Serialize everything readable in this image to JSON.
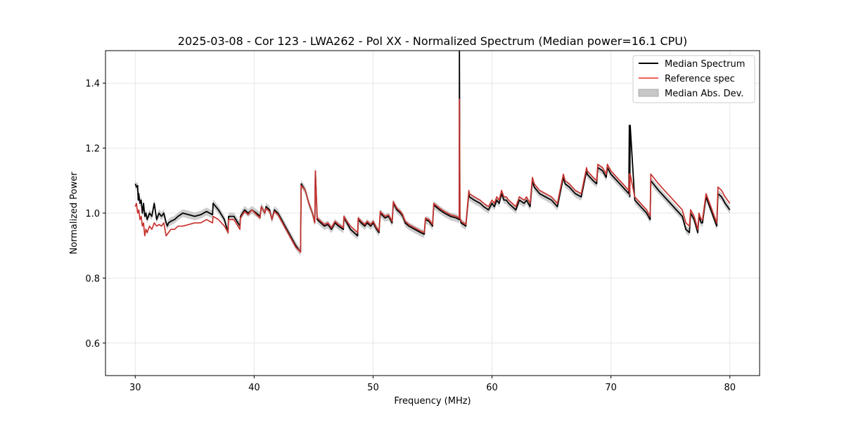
{
  "chart_data": {
    "type": "line",
    "title": "2025-03-08 - Cor 123 - LWA262 - Pol XX - Normalized Spectrum (Median power=16.1 CPU)",
    "xlabel": "Frequency (MHz)",
    "ylabel": "Normalized Power",
    "xlim": [
      27.5,
      82.5
    ],
    "ylim": [
      0.5,
      1.5
    ],
    "xticks": [
      30,
      40,
      50,
      60,
      70,
      80
    ],
    "yticks": [
      0.6,
      0.8,
      1.0,
      1.2,
      1.4
    ],
    "xtick_labels": [
      "30",
      "40",
      "50",
      "60",
      "70",
      "80"
    ],
    "ytick_labels": [
      "0.6",
      "0.8",
      "1.0",
      "1.2",
      "1.4"
    ],
    "grid": true,
    "legend_position": "upper right",
    "legend": [
      {
        "name": "Median Spectrum",
        "kind": "line",
        "color": "#000000"
      },
      {
        "name": "Reference spec",
        "kind": "line",
        "color": "#f0605a"
      },
      {
        "name": "Median Abs. Dev.",
        "kind": "band",
        "color": "#c8c8c8"
      }
    ],
    "mad_halfwidth": 0.012,
    "series": [
      {
        "name": "Median Spectrum",
        "color": "#000000",
        "x": [
          30.0,
          30.1,
          30.2,
          30.25,
          30.3,
          30.4,
          30.5,
          30.6,
          30.7,
          30.8,
          30.9,
          31.0,
          31.2,
          31.4,
          31.6,
          31.8,
          32.0,
          32.2,
          32.4,
          32.6,
          32.7,
          32.8,
          33.0,
          33.3,
          33.6,
          34.0,
          34.5,
          35.0,
          35.5,
          36.0,
          36.5,
          36.55,
          37.0,
          37.5,
          37.8,
          37.85,
          38.3,
          38.8,
          38.85,
          39.2,
          39.5,
          39.8,
          40.2,
          40.5,
          40.6,
          40.9,
          41.0,
          41.3,
          41.5,
          41.7,
          42.0,
          42.3,
          42.6,
          42.9,
          43.2,
          43.5,
          43.9,
          43.95,
          44.3,
          44.6,
          44.9,
          45.1,
          45.15,
          45.3,
          45.6,
          45.9,
          46.2,
          46.5,
          46.8,
          47.1,
          47.5,
          47.55,
          47.8,
          48.1,
          48.4,
          48.7,
          48.75,
          49.0,
          49.3,
          49.5,
          49.8,
          50.0,
          50.3,
          50.5,
          50.6,
          51.0,
          51.3,
          51.6,
          51.7,
          52.0,
          52.3,
          52.5,
          52.7,
          53.0,
          53.5,
          54.0,
          54.3,
          54.4,
          54.7,
          55.0,
          55.1,
          55.6,
          56.0,
          56.5,
          57.0,
          57.25,
          57.26,
          57.3,
          57.32,
          57.4,
          57.8,
          58.05,
          58.1,
          58.5,
          59.0,
          59.3,
          59.7,
          60.0,
          60.2,
          60.4,
          60.6,
          60.8,
          61.0,
          61.2,
          61.4,
          61.7,
          62.0,
          62.3,
          62.7,
          62.9,
          63.2,
          63.4,
          63.55,
          64.0,
          64.5,
          65.0,
          65.5,
          66.0,
          66.15,
          66.5,
          67.0,
          67.5,
          67.95,
          68.0,
          68.5,
          68.8,
          68.9,
          69.3,
          69.6,
          69.7,
          70.0,
          70.5,
          71.0,
          71.5,
          71.55,
          71.58,
          71.62,
          72.0,
          72.5,
          73.0,
          73.3,
          73.35,
          74.0,
          74.5,
          75.0,
          75.5,
          76.0,
          76.3,
          76.6,
          76.7,
          77.0,
          77.3,
          77.4,
          77.6,
          77.7,
          78.0,
          78.3,
          78.5,
          78.9,
          79.0,
          79.3,
          79.6,
          80.0
        ],
        "y": [
          1.09,
          1.08,
          1.085,
          1.04,
          1.06,
          1.03,
          1.04,
          1.0,
          1.03,
          0.99,
          1.0,
          0.98,
          1.0,
          0.99,
          1.03,
          0.98,
          1.0,
          0.99,
          1.0,
          0.97,
          0.96,
          0.97,
          0.975,
          0.98,
          0.99,
          1.0,
          0.995,
          0.99,
          0.995,
          1.005,
          0.995,
          1.03,
          1.01,
          0.98,
          0.94,
          0.99,
          0.99,
          0.96,
          0.99,
          1.01,
          1.0,
          1.01,
          1.0,
          0.99,
          1.02,
          1.0,
          1.02,
          1.01,
          0.98,
          1.01,
          1.0,
          0.98,
          0.96,
          0.94,
          0.92,
          0.9,
          0.88,
          1.09,
          1.07,
          1.03,
          1.0,
          0.97,
          1.13,
          0.98,
          0.97,
          0.96,
          0.965,
          0.95,
          0.97,
          0.96,
          0.95,
          0.985,
          0.97,
          0.95,
          0.94,
          0.93,
          0.98,
          0.97,
          0.96,
          0.97,
          0.96,
          0.97,
          0.95,
          0.94,
          1.0,
          0.985,
          0.99,
          0.97,
          1.03,
          1.01,
          1.0,
          0.99,
          0.97,
          0.96,
          0.95,
          0.94,
          0.935,
          0.98,
          0.975,
          0.96,
          1.025,
          1.01,
          1.0,
          0.99,
          0.985,
          0.98,
          1.5,
          0.995,
          0.98,
          0.97,
          0.96,
          1.06,
          1.05,
          1.04,
          1.03,
          1.02,
          1.01,
          1.03,
          1.02,
          1.04,
          1.03,
          1.06,
          1.04,
          1.04,
          1.03,
          1.02,
          1.01,
          1.04,
          1.03,
          1.04,
          1.02,
          1.1,
          1.08,
          1.06,
          1.05,
          1.04,
          1.02,
          1.11,
          1.09,
          1.08,
          1.06,
          1.05,
          1.13,
          1.12,
          1.1,
          1.09,
          1.14,
          1.13,
          1.11,
          1.14,
          1.12,
          1.1,
          1.08,
          1.06,
          1.27,
          1.05,
          1.27,
          1.04,
          1.02,
          1.0,
          0.98,
          1.1,
          1.07,
          1.05,
          1.03,
          1.01,
          0.99,
          0.95,
          0.94,
          1.0,
          0.98,
          0.94,
          0.99,
          0.97,
          0.97,
          1.05,
          1.02,
          1.0,
          0.96,
          1.06,
          1.05,
          1.03,
          1.01
        ]
      },
      {
        "name": "Reference spec",
        "color": "#f0605a",
        "x": [
          30.0,
          30.1,
          30.2,
          30.3,
          30.4,
          30.5,
          30.6,
          30.7,
          30.8,
          30.9,
          31.0,
          31.2,
          31.4,
          31.6,
          31.8,
          32.0,
          32.2,
          32.4,
          32.6,
          32.7,
          32.8,
          33.0,
          33.3,
          33.6,
          34.0,
          34.5,
          35.0,
          35.5,
          36.0,
          36.5,
          36.55,
          37.0,
          37.5,
          37.8,
          37.85,
          38.3,
          38.8,
          38.85,
          39.2,
          39.5,
          39.8,
          40.2,
          40.5,
          40.6,
          40.9,
          41.0,
          41.3,
          41.5,
          41.7,
          42.0,
          42.3,
          42.6,
          42.9,
          43.2,
          43.5,
          43.9,
          43.95,
          44.3,
          44.6,
          44.9,
          45.1,
          45.15,
          45.3,
          45.6,
          45.9,
          46.2,
          46.5,
          46.8,
          47.1,
          47.5,
          47.55,
          47.8,
          48.1,
          48.4,
          48.7,
          48.75,
          49.0,
          49.3,
          49.5,
          49.8,
          50.0,
          50.3,
          50.5,
          50.6,
          51.0,
          51.3,
          51.6,
          51.7,
          52.0,
          52.3,
          52.5,
          52.7,
          53.0,
          53.5,
          54.0,
          54.3,
          54.4,
          54.7,
          55.0,
          55.1,
          55.6,
          56.0,
          56.5,
          57.0,
          57.25,
          57.26,
          57.3,
          57.32,
          57.4,
          57.8,
          58.05,
          58.1,
          58.5,
          59.0,
          59.3,
          59.7,
          60.0,
          60.2,
          60.4,
          60.6,
          60.8,
          61.0,
          61.2,
          61.4,
          61.7,
          62.0,
          62.3,
          62.7,
          62.9,
          63.2,
          63.4,
          63.55,
          64.0,
          64.5,
          65.0,
          65.5,
          66.0,
          66.15,
          66.5,
          67.0,
          67.5,
          67.95,
          68.0,
          68.5,
          68.8,
          68.9,
          69.3,
          69.6,
          69.7,
          70.0,
          70.5,
          71.0,
          71.5,
          71.55,
          71.58,
          71.62,
          72.0,
          72.5,
          73.0,
          73.3,
          73.35,
          74.0,
          74.5,
          75.0,
          75.5,
          76.0,
          76.3,
          76.6,
          76.7,
          77.0,
          77.3,
          77.4,
          77.6,
          77.7,
          78.0,
          78.3,
          78.5,
          78.9,
          79.0,
          79.3,
          79.6,
          80.0
        ],
        "y": [
          1.02,
          1.03,
          1.0,
          1.01,
          0.98,
          0.99,
          0.96,
          0.97,
          0.93,
          0.95,
          0.94,
          0.96,
          0.95,
          0.97,
          0.96,
          0.965,
          0.96,
          0.97,
          0.93,
          0.935,
          0.94,
          0.95,
          0.95,
          0.96,
          0.96,
          0.965,
          0.97,
          0.97,
          0.98,
          0.97,
          0.99,
          0.98,
          0.96,
          0.94,
          0.98,
          0.98,
          0.95,
          0.985,
          1.005,
          0.995,
          1.01,
          0.995,
          0.985,
          1.02,
          1.0,
          1.015,
          1.005,
          0.98,
          1.005,
          0.995,
          0.975,
          0.955,
          0.935,
          0.915,
          0.895,
          0.88,
          1.085,
          1.07,
          1.03,
          1.0,
          0.97,
          1.13,
          0.985,
          0.975,
          0.965,
          0.97,
          0.955,
          0.975,
          0.965,
          0.955,
          0.99,
          0.975,
          0.96,
          0.95,
          0.94,
          0.985,
          0.975,
          0.965,
          0.975,
          0.965,
          0.975,
          0.955,
          0.945,
          1.005,
          0.99,
          0.995,
          0.975,
          1.035,
          1.015,
          1.005,
          0.995,
          0.975,
          0.965,
          0.955,
          0.945,
          0.94,
          0.985,
          0.98,
          0.965,
          1.03,
          1.015,
          1.005,
          0.995,
          0.99,
          0.985,
          1.35,
          1.0,
          0.985,
          0.975,
          0.965,
          1.07,
          1.06,
          1.05,
          1.04,
          1.03,
          1.02,
          1.04,
          1.03,
          1.05,
          1.04,
          1.07,
          1.05,
          1.05,
          1.04,
          1.03,
          1.02,
          1.05,
          1.04,
          1.05,
          1.03,
          1.11,
          1.09,
          1.07,
          1.06,
          1.05,
          1.03,
          1.12,
          1.1,
          1.09,
          1.07,
          1.06,
          1.14,
          1.13,
          1.11,
          1.1,
          1.15,
          1.14,
          1.12,
          1.15,
          1.13,
          1.11,
          1.09,
          1.07,
          1.12,
          1.06,
          1.12,
          1.05,
          1.03,
          1.01,
          0.99,
          1.12,
          1.09,
          1.07,
          1.05,
          1.03,
          1.01,
          0.97,
          0.96,
          1.01,
          0.99,
          0.95,
          1.0,
          0.98,
          0.98,
          1.06,
          1.03,
          1.01,
          0.97,
          1.08,
          1.07,
          1.05,
          1.03
        ]
      }
    ]
  }
}
